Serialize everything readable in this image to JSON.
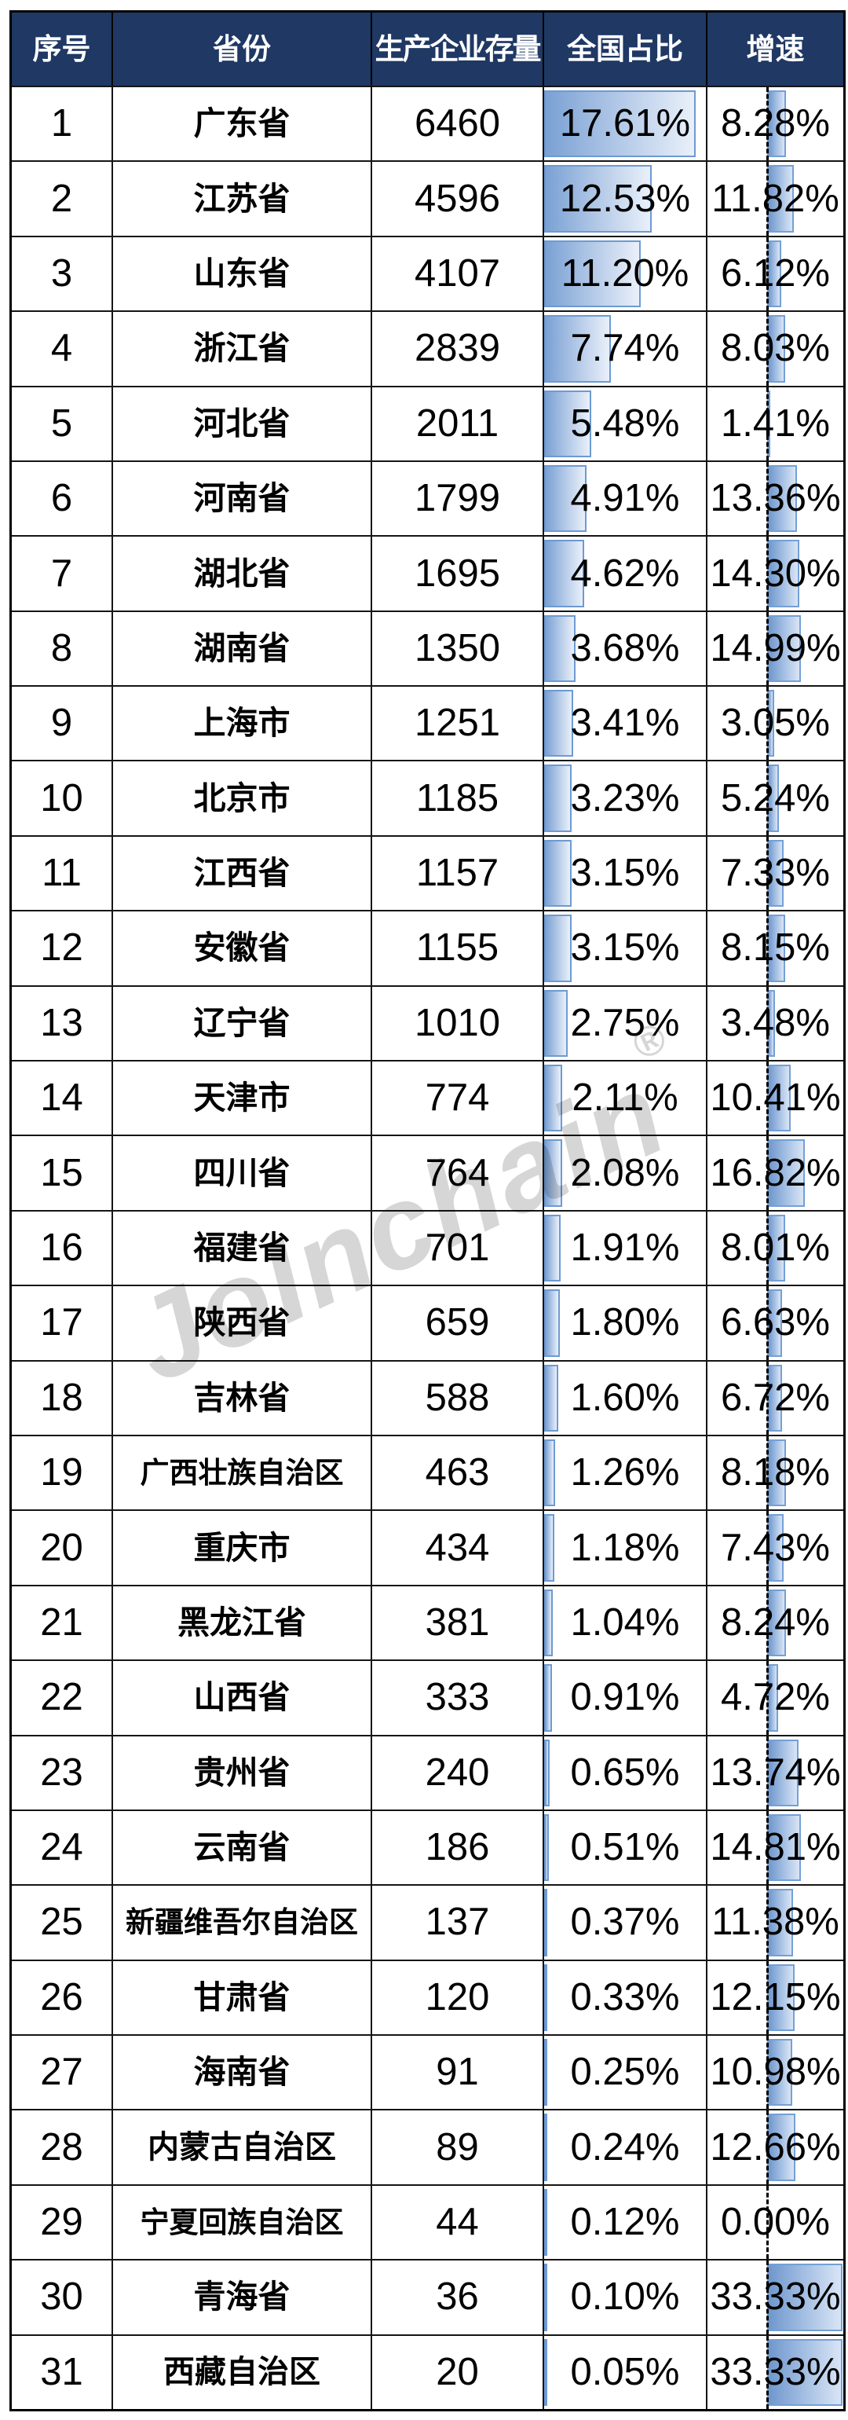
{
  "watermark": {
    "text": "JoInchain",
    "reg": "®"
  },
  "colors": {
    "header_bg": "#1f3864",
    "header_text": "#ffffff",
    "grid_line": "#151515",
    "bar_fill_start": "#7aa1d4",
    "bar_fill_end": "#e9f0fa",
    "bar_border": "#6d9ad3",
    "axis_dash": "#000000"
  },
  "chart_data": {
    "type": "table",
    "title": "",
    "columns": [
      "序号",
      "省份",
      "生产企业存量",
      "全国占比",
      "增速"
    ],
    "share_databar": {
      "unit": "%",
      "bar_min": 0,
      "bar_max_percent": 17.61,
      "max_bar_width_fraction": 0.938
    },
    "growth_databar": {
      "unit": "%",
      "axis_position_fraction": 0.439,
      "bar_max_percent": 33.33,
      "max_bar_width_fraction": 0.555
    },
    "rows": [
      {
        "no": 1,
        "province": "广东省",
        "stock": 6460,
        "share": 17.61,
        "growth": 8.28
      },
      {
        "no": 2,
        "province": "江苏省",
        "stock": 4596,
        "share": 12.53,
        "growth": 11.82
      },
      {
        "no": 3,
        "province": "山东省",
        "stock": 4107,
        "share": 11.2,
        "growth": 6.12
      },
      {
        "no": 4,
        "province": "浙江省",
        "stock": 2839,
        "share": 7.74,
        "growth": 8.03
      },
      {
        "no": 5,
        "province": "河北省",
        "stock": 2011,
        "share": 5.48,
        "growth": 1.41
      },
      {
        "no": 6,
        "province": "河南省",
        "stock": 1799,
        "share": 4.91,
        "growth": 13.36
      },
      {
        "no": 7,
        "province": "湖北省",
        "stock": 1695,
        "share": 4.62,
        "growth": 14.3
      },
      {
        "no": 8,
        "province": "湖南省",
        "stock": 1350,
        "share": 3.68,
        "growth": 14.99
      },
      {
        "no": 9,
        "province": "上海市",
        "stock": 1251,
        "share": 3.41,
        "growth": 3.05
      },
      {
        "no": 10,
        "province": "北京市",
        "stock": 1185,
        "share": 3.23,
        "growth": 5.24
      },
      {
        "no": 11,
        "province": "江西省",
        "stock": 1157,
        "share": 3.15,
        "growth": 7.33
      },
      {
        "no": 12,
        "province": "安徽省",
        "stock": 1155,
        "share": 3.15,
        "growth": 8.15
      },
      {
        "no": 13,
        "province": "辽宁省",
        "stock": 1010,
        "share": 2.75,
        "growth": 3.48
      },
      {
        "no": 14,
        "province": "天津市",
        "stock": 774,
        "share": 2.11,
        "growth": 10.41
      },
      {
        "no": 15,
        "province": "四川省",
        "stock": 764,
        "share": 2.08,
        "growth": 16.82
      },
      {
        "no": 16,
        "province": "福建省",
        "stock": 701,
        "share": 1.91,
        "growth": 8.01
      },
      {
        "no": 17,
        "province": "陕西省",
        "stock": 659,
        "share": 1.8,
        "growth": 6.63
      },
      {
        "no": 18,
        "province": "吉林省",
        "stock": 588,
        "share": 1.6,
        "growth": 6.72
      },
      {
        "no": 19,
        "province": "广西壮族自治区",
        "stock": 463,
        "share": 1.26,
        "growth": 8.18
      },
      {
        "no": 20,
        "province": "重庆市",
        "stock": 434,
        "share": 1.18,
        "growth": 7.43
      },
      {
        "no": 21,
        "province": "黑龙江省",
        "stock": 381,
        "share": 1.04,
        "growth": 8.24
      },
      {
        "no": 22,
        "province": "山西省",
        "stock": 333,
        "share": 0.91,
        "growth": 4.72
      },
      {
        "no": 23,
        "province": "贵州省",
        "stock": 240,
        "share": 0.65,
        "growth": 13.74
      },
      {
        "no": 24,
        "province": "云南省",
        "stock": 186,
        "share": 0.51,
        "growth": 14.81
      },
      {
        "no": 25,
        "province": "新疆维吾尔自治区",
        "stock": 137,
        "share": 0.37,
        "growth": 11.38
      },
      {
        "no": 26,
        "province": "甘肃省",
        "stock": 120,
        "share": 0.33,
        "growth": 12.15
      },
      {
        "no": 27,
        "province": "海南省",
        "stock": 91,
        "share": 0.25,
        "growth": 10.98
      },
      {
        "no": 28,
        "province": "内蒙古自治区",
        "stock": 89,
        "share": 0.24,
        "growth": 12.66
      },
      {
        "no": 29,
        "province": "宁夏回族自治区",
        "stock": 44,
        "share": 0.12,
        "growth": 0.0
      },
      {
        "no": 30,
        "province": "青海省",
        "stock": 36,
        "share": 0.1,
        "growth": 33.33
      },
      {
        "no": 31,
        "province": "西藏自治区",
        "stock": 20,
        "share": 0.05,
        "growth": 33.33
      }
    ]
  }
}
